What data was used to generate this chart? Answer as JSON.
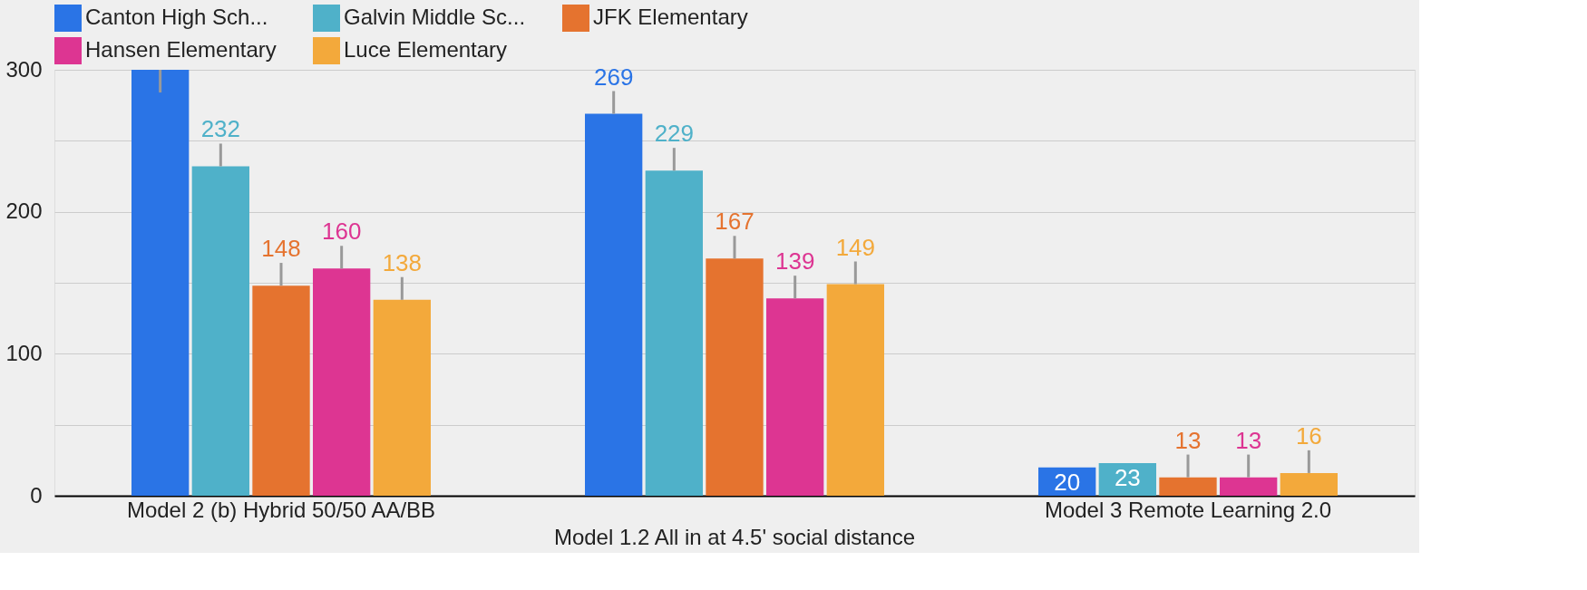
{
  "chart_data": {
    "type": "bar",
    "categories": [
      "Model 2 (b) Hybrid 50/50 AA/BB",
      "Model 1.2 All in at 4.5' social distance",
      "Model 3 Remote Learning 2.0"
    ],
    "series": [
      {
        "name": "Canton High Sch...",
        "color": "#2a74e6",
        "values": [
          300,
          269,
          20
        ],
        "errors": [
          [
            284,
            300
          ],
          [
            269,
            285
          ],
          null
        ],
        "value_labels": [
          null,
          "269",
          "20"
        ]
      },
      {
        "name": "Galvin Middle Sc...",
        "color": "#4fb1c9",
        "values": [
          232,
          229,
          23
        ],
        "errors": [
          [
            232,
            248
          ],
          [
            229,
            245
          ],
          null
        ],
        "value_labels": [
          "232",
          "229",
          "23"
        ]
      },
      {
        "name": "JFK Elementary",
        "color": "#e5732f",
        "values": [
          148,
          167,
          13
        ],
        "errors": [
          [
            148,
            164
          ],
          [
            167,
            183
          ],
          [
            13,
            29
          ]
        ],
        "value_labels": [
          "148",
          "167",
          "13"
        ]
      },
      {
        "name": "Hansen Elementary",
        "color": "#dd3592",
        "values": [
          160,
          139,
          13
        ],
        "errors": [
          [
            160,
            176
          ],
          [
            139,
            155
          ],
          [
            13,
            29
          ]
        ],
        "value_labels": [
          "160",
          "139",
          "13"
        ]
      },
      {
        "name": "Luce Elementary",
        "color": "#f3a93b",
        "values": [
          138,
          149,
          16
        ],
        "errors": [
          [
            138,
            154
          ],
          [
            149,
            165
          ],
          [
            16,
            32
          ]
        ],
        "value_labels": [
          "138",
          "149",
          "16"
        ]
      }
    ],
    "ylim": [
      0,
      300
    ],
    "yticks": [
      0,
      {
        "value": 50,
        "label": null
      },
      100,
      {
        "value": 150,
        "label": null
      },
      200,
      {
        "value": 250,
        "label": null
      },
      300
    ],
    "grid": true,
    "legend": "top"
  }
}
